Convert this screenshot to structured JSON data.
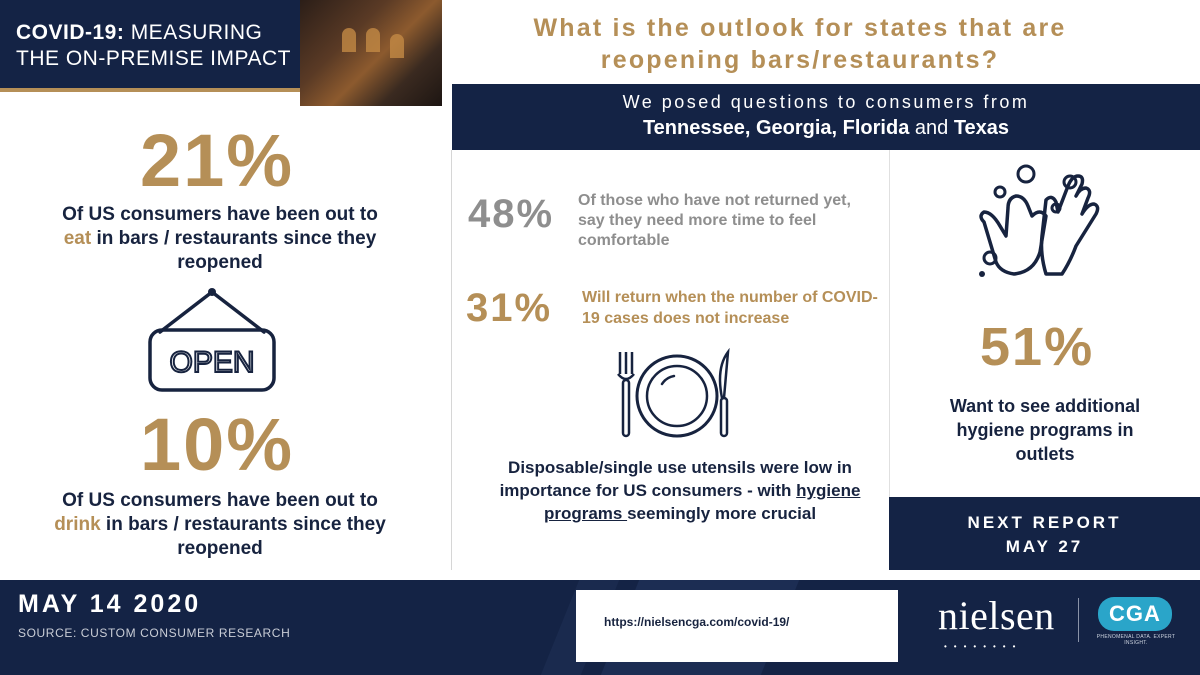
{
  "banner": {
    "title_bold": "COVID-19:",
    "title_rest": " MEASURING",
    "title_line2": "THE ON-PREMISE IMPACT"
  },
  "left": {
    "stat1": {
      "value": "21%",
      "pre": "Of US consumers have been out to ",
      "highlight": "eat",
      "post": " in bars / restaurants since they reopened"
    },
    "open_sign": "OPEN",
    "stat2": {
      "value": "10%",
      "pre": "Of US consumers have been out to ",
      "highlight": "drink",
      "post": " in bars / restaurants since they reopened"
    }
  },
  "question": "What is the outlook for states that are reopening bars/restaurants?",
  "posed": {
    "line1": "We posed questions to consumers from",
    "states_a": "Tennessee, Georgia, Florida",
    "and": " and ",
    "states_b": "Texas"
  },
  "middle": {
    "stat48": {
      "value": "48%",
      "text": "Of those who have not returned yet, say they need more time to feel comfortable"
    },
    "stat31": {
      "value": "31%",
      "text": "Will return when the number of COVID-19 cases does not increase"
    },
    "utensils": {
      "pre": "Disposable/single use utensils were low in importance for US consumers - with ",
      "underline": "hygiene programs ",
      "post": "seemingly more crucial"
    }
  },
  "right": {
    "stat51": {
      "value": "51%",
      "text": "Want to see additional hygiene programs in outlets"
    },
    "next_report_line1": "NEXT REPORT",
    "next_report_line2": "MAY 27"
  },
  "footer": {
    "date": "MAY 14 2020",
    "source": "SOURCE: CUSTOM CONSUMER RESEARCH",
    "url": "https://nielsencga.com/covid-19/",
    "nielsen": "nielsen",
    "nielsen_dots": "••••••••",
    "cga": "CGA",
    "cga_tagline": "PHENOMENAL DATA. EXPERT INSIGHT."
  },
  "colors": {
    "navy": "#142345",
    "gold": "#b58f57",
    "gray": "#8e8e8e",
    "cga_blue": "#2aa5c9"
  }
}
